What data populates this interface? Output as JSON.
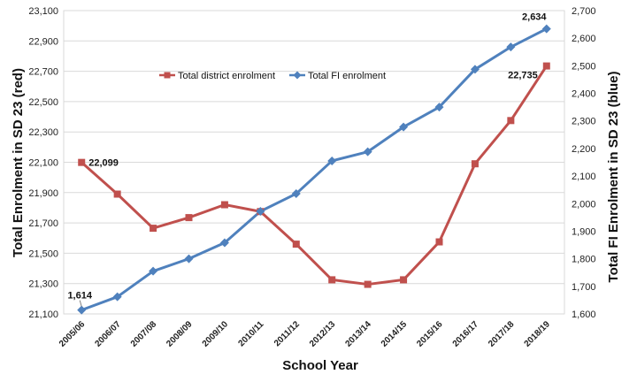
{
  "chart_data": {
    "type": "line",
    "xlabel": "School Year",
    "ylabel_left": "Total Enrolment in SD 23 (red)",
    "ylabel_right": "Total FI Enrolment in SD 23 (blue)",
    "categories": [
      "2005/06",
      "2006/07",
      "2007/08",
      "2008/09",
      "2009/10",
      "2010/11",
      "2011/12",
      "2012/13",
      "2013/14",
      "2014/15",
      "2015/16",
      "2016/17",
      "2017/18",
      "2018/19"
    ],
    "ylim_left": [
      21100,
      23100
    ],
    "ylim_right": [
      1600,
      2700
    ],
    "yticks_left": [
      "21,100",
      "21,300",
      "21,500",
      "21,700",
      "21,900",
      "22,100",
      "22,300",
      "22,500",
      "22,700",
      "22,900",
      "23,100"
    ],
    "yticks_right": [
      "1,600",
      "1,700",
      "1,800",
      "1,900",
      "2,000",
      "2,100",
      "2,200",
      "2,300",
      "2,400",
      "2,500",
      "2,600",
      "2,700"
    ],
    "legend_position": "top-left",
    "series": [
      {
        "name": "Total district enrolment",
        "axis": "left",
        "color": "#c0504d",
        "marker": "square",
        "values": [
          22099,
          21890,
          21665,
          21735,
          21820,
          21775,
          21560,
          21325,
          21295,
          21325,
          21575,
          22090,
          22375,
          22735
        ]
      },
      {
        "name": "Total FI enrolment",
        "axis": "right",
        "color": "#4f81bd",
        "marker": "diamond",
        "values": [
          1614,
          1662,
          1755,
          1800,
          1858,
          1972,
          2036,
          2155,
          2188,
          2278,
          2350,
          2487,
          2568,
          2634
        ]
      }
    ],
    "data_labels": [
      {
        "text": "22,099",
        "series": 0,
        "index": 0
      },
      {
        "text": "22,735",
        "series": 0,
        "index": 13
      },
      {
        "text": "1,614",
        "series": 1,
        "index": 0
      },
      {
        "text": "2,634",
        "series": 1,
        "index": 13
      }
    ],
    "gridlines": true
  }
}
